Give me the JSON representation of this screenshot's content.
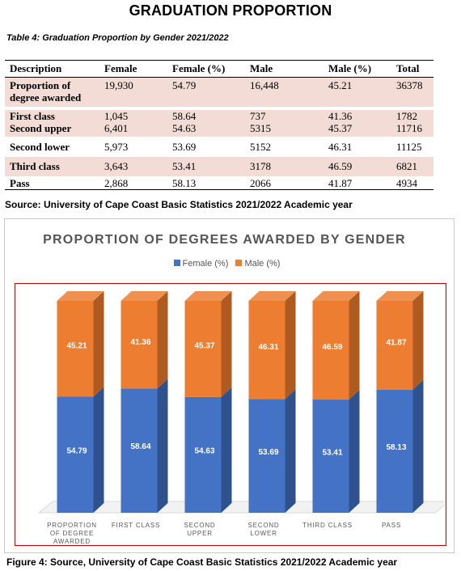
{
  "heading": "GRADUATION PROPORTION",
  "table_caption": "Table 4: Graduation Proportion by Gender  2021/2022",
  "table": {
    "headers": [
      "Description",
      "Female",
      "Female (%)",
      "Male",
      "Male (%)",
      "Total"
    ],
    "rows": [
      {
        "desc": "Proportion of degree awarded",
        "female": "19,930",
        "female_pct": "54.79",
        "male": "16,448",
        "male_pct": "45.21",
        "total": "36378"
      },
      {
        "desc": "First class",
        "female": "1,045",
        "female_pct": "58.64",
        "male": "737",
        "male_pct": "41.36",
        "total": "1782"
      },
      {
        "desc": "Second upper",
        "female": "6,401",
        "female_pct": "54.63",
        "male": "5315",
        "male_pct": "45.37",
        "total": "11716"
      },
      {
        "desc": "Second lower",
        "female": "5,973",
        "female_pct": "53.69",
        "male": "5152",
        "male_pct": "46.31",
        "total": "11125"
      },
      {
        "desc": "Third class",
        "female": "3,643",
        "female_pct": "53.41",
        "male": "3178",
        "male_pct": "46.59",
        "total": "6821"
      },
      {
        "desc": "Pass",
        "female": "2,868",
        "female_pct": "58.13",
        "male": "2066",
        "male_pct": "41.87",
        "total": "4934"
      }
    ]
  },
  "table_source": "Source: University of Cape Coast Basic Statistics 2021/2022 Academic year",
  "chart_data": {
    "type": "bar",
    "stacked": true,
    "title": "PROPORTION OF DEGREES AWARDED BY GENDER",
    "categories": [
      "PROPORTION OF DEGREE AWARDED",
      "FIRST CLASS",
      "SECOND UPPER",
      "SECOND LOWER",
      "THIRD CLASS",
      "PASS"
    ],
    "series": [
      {
        "name": "Female (%)",
        "color": "#4472c4",
        "values": [
          54.79,
          58.64,
          54.63,
          53.69,
          53.41,
          58.13
        ]
      },
      {
        "name": "Male (%)",
        "color": "#ed7d31",
        "values": [
          45.21,
          41.36,
          45.37,
          46.31,
          46.59,
          41.87
        ]
      }
    ],
    "ylim": [
      0,
      100
    ],
    "legend": "top",
    "grid": false
  },
  "figure_caption": "Figure 4: Source, University of Cape Coast Basic Statistics 2021/2022 Academic year"
}
